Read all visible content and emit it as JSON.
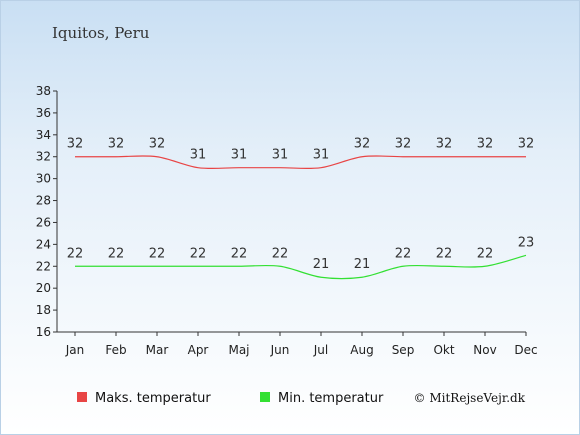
{
  "chart_data": {
    "type": "line",
    "title": "Iquitos, Peru",
    "categories": [
      "Jan",
      "Feb",
      "Mar",
      "Apr",
      "Maj",
      "Jun",
      "Jul",
      "Aug",
      "Sep",
      "Okt",
      "Nov",
      "Dec"
    ],
    "ylim": [
      16,
      38
    ],
    "yticks": [
      16,
      18,
      20,
      22,
      24,
      26,
      28,
      30,
      32,
      34,
      36,
      38
    ],
    "grid": false,
    "legend_position": "bottom",
    "series": [
      {
        "name": "Maks. temperatur",
        "color": "#e84545",
        "values": [
          32,
          32,
          32,
          31,
          31,
          31,
          31,
          32,
          32,
          32,
          32,
          32
        ]
      },
      {
        "name": "Min. temperatur",
        "color": "#33e033",
        "values": [
          22,
          22,
          22,
          22,
          22,
          22,
          21,
          21,
          22,
          22,
          22,
          23
        ]
      }
    ]
  },
  "credit": "© MitRejseVejr.dk"
}
